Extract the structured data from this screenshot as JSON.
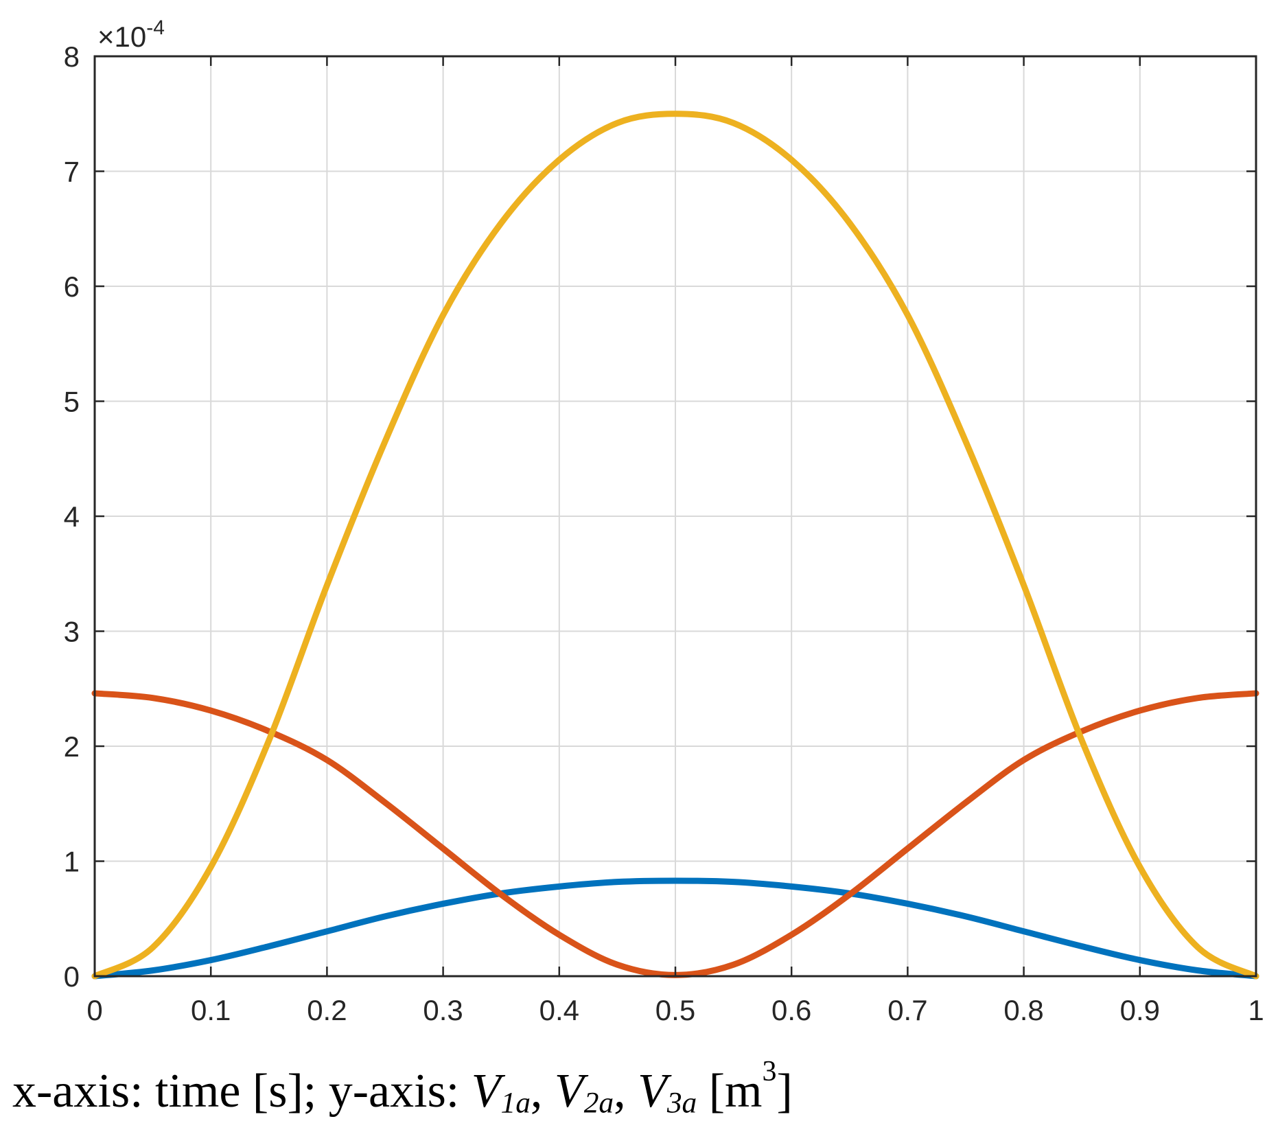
{
  "chart_data": {
    "type": "line",
    "title": "",
    "xlabel": "",
    "ylabel": "",
    "xlim": [
      0,
      1
    ],
    "ylim": [
      0,
      8
    ],
    "y_scale_exponent": "×10",
    "y_scale_power": "-4",
    "xticks": [
      "0",
      "0.1",
      "0.2",
      "0.3",
      "0.4",
      "0.5",
      "0.6",
      "0.7",
      "0.8",
      "0.9",
      "1"
    ],
    "yticks": [
      "0",
      "1",
      "2",
      "3",
      "4",
      "5",
      "6",
      "7",
      "8"
    ],
    "grid": true,
    "x": [
      0,
      0.05,
      0.1,
      0.15,
      0.2,
      0.25,
      0.3,
      0.35,
      0.4,
      0.45,
      0.5,
      0.55,
      0.6,
      0.65,
      0.7,
      0.75,
      0.8,
      0.85,
      0.9,
      0.95,
      1
    ],
    "series": [
      {
        "name": "V1a",
        "color": "#0072BD",
        "values": [
          0,
          0.05,
          0.14,
          0.26,
          0.39,
          0.52,
          0.63,
          0.72,
          0.78,
          0.82,
          0.83,
          0.82,
          0.78,
          0.72,
          0.63,
          0.52,
          0.39,
          0.26,
          0.14,
          0.05,
          0
        ]
      },
      {
        "name": "V2a",
        "color": "#D95319",
        "values": [
          2.46,
          2.42,
          2.31,
          2.13,
          1.88,
          1.51,
          1.11,
          0.71,
          0.36,
          0.1,
          0.01,
          0.1,
          0.36,
          0.71,
          1.11,
          1.51,
          1.88,
          2.13,
          2.31,
          2.42,
          2.46
        ]
      },
      {
        "name": "V3a",
        "color": "#EDB120",
        "values": [
          0,
          0.25,
          0.95,
          2.05,
          3.4,
          4.65,
          5.75,
          6.55,
          7.1,
          7.42,
          7.5,
          7.42,
          7.1,
          6.55,
          5.75,
          4.65,
          3.4,
          2.05,
          0.95,
          0.25,
          0
        ]
      }
    ]
  },
  "caption": {
    "prefix": "x-axis: time [s]; y-axis: ",
    "v1": "V",
    "v1_sub": "1a",
    "sep1": ", ",
    "v2": "V",
    "v2_sub": "2a",
    "sep2": ", ",
    "v3": "V",
    "v3_sub": "3a",
    "unit_open": " [m",
    "unit_sup": "3",
    "unit_close": "]"
  }
}
